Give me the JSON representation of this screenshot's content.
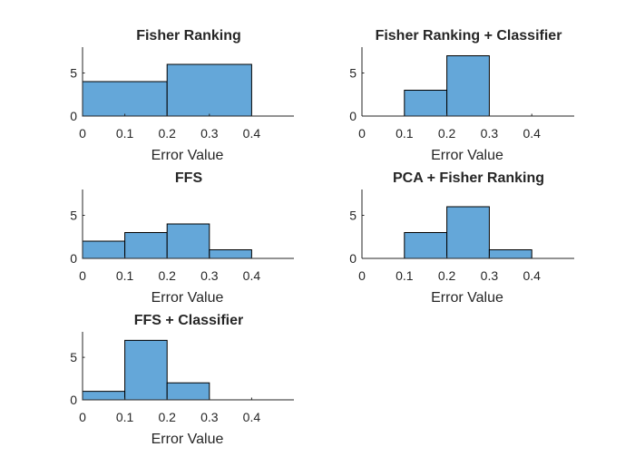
{
  "chart_data": [
    {
      "type": "bar",
      "title": "Fisher Ranking",
      "xlabel": "Error Value",
      "ylabel": "",
      "xlim": [
        0,
        0.5
      ],
      "ylim": [
        0,
        8
      ],
      "xticks": [
        "0",
        "0.1",
        "0.2",
        "0.3",
        "0.4"
      ],
      "yticks": [
        "0",
        "5"
      ],
      "bins": [
        {
          "start": 0,
          "end": 0.2,
          "count": 4
        },
        {
          "start": 0.2,
          "end": 0.4,
          "count": 6
        }
      ]
    },
    {
      "type": "bar",
      "title": "Fisher Ranking + Classifier",
      "xlabel": "Error Value",
      "ylabel": "",
      "xlim": [
        0,
        0.5
      ],
      "ylim": [
        0,
        8
      ],
      "xticks": [
        "0",
        "0.1",
        "0.2",
        "0.3",
        "0.4"
      ],
      "yticks": [
        "0",
        "5"
      ],
      "bins": [
        {
          "start": 0.1,
          "end": 0.2,
          "count": 3
        },
        {
          "start": 0.2,
          "end": 0.3,
          "count": 7
        }
      ]
    },
    {
      "type": "bar",
      "title": "FFS",
      "xlabel": "Error Value",
      "ylabel": "",
      "xlim": [
        0,
        0.5
      ],
      "ylim": [
        0,
        8
      ],
      "xticks": [
        "0",
        "0.1",
        "0.2",
        "0.3",
        "0.4"
      ],
      "yticks": [
        "0",
        "5"
      ],
      "bins": [
        {
          "start": 0,
          "end": 0.1,
          "count": 2
        },
        {
          "start": 0.1,
          "end": 0.2,
          "count": 3
        },
        {
          "start": 0.2,
          "end": 0.3,
          "count": 4
        },
        {
          "start": 0.3,
          "end": 0.4,
          "count": 1
        }
      ]
    },
    {
      "type": "bar",
      "title": "PCA + Fisher Ranking",
      "xlabel": "Error Value",
      "ylabel": "",
      "xlim": [
        0,
        0.5
      ],
      "ylim": [
        0,
        8
      ],
      "xticks": [
        "0",
        "0.1",
        "0.2",
        "0.3",
        "0.4"
      ],
      "yticks": [
        "0",
        "5"
      ],
      "bins": [
        {
          "start": 0.1,
          "end": 0.2,
          "count": 3
        },
        {
          "start": 0.2,
          "end": 0.3,
          "count": 6
        },
        {
          "start": 0.3,
          "end": 0.4,
          "count": 1
        }
      ]
    },
    {
      "type": "bar",
      "title": "FFS + Classifier",
      "xlabel": "Error Value",
      "ylabel": "",
      "xlim": [
        0,
        0.5
      ],
      "ylim": [
        0,
        8
      ],
      "xticks": [
        "0",
        "0.1",
        "0.2",
        "0.3",
        "0.4"
      ],
      "yticks": [
        "0",
        "5"
      ],
      "bins": [
        {
          "start": 0,
          "end": 0.1,
          "count": 1
        },
        {
          "start": 0.1,
          "end": 0.2,
          "count": 7
        },
        {
          "start": 0.2,
          "end": 0.3,
          "count": 2
        }
      ]
    }
  ],
  "colors": {
    "bar_fill": "#64a7d9",
    "bar_edge": "#000000",
    "axis": "#262626"
  }
}
